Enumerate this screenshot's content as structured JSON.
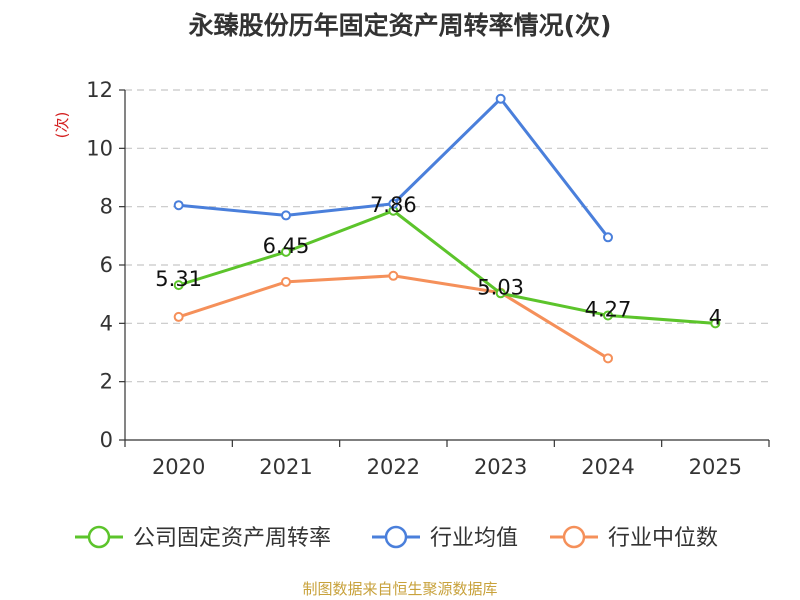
{
  "chart_data": {
    "type": "line",
    "title": "永臻股份历年固定资产周转率情况(次)",
    "ylabel": "(次)",
    "xlabel": "",
    "categories": [
      "2020",
      "2021",
      "2022",
      "2023",
      "2024",
      "2025"
    ],
    "ylim": [
      0,
      12
    ],
    "yticks": [
      0,
      2,
      4,
      6,
      8,
      10,
      12
    ],
    "grid": true,
    "legend_position": "bottom",
    "series": [
      {
        "name": "公司固定资产周转率",
        "color": "#5cc42b",
        "values": [
          5.31,
          6.45,
          7.86,
          5.03,
          4.27,
          4
        ],
        "labels": [
          "5.31",
          "6.45",
          "7.86",
          "5.03",
          "4.27",
          "4"
        ]
      },
      {
        "name": "行业均值",
        "color": "#4a7fdb",
        "values": [
          8.05,
          7.7,
          8.1,
          11.7,
          6.95,
          null
        ]
      },
      {
        "name": "行业中位数",
        "color": "#f5905a",
        "values": [
          4.22,
          5.42,
          5.63,
          5.05,
          2.8,
          null
        ]
      }
    ]
  },
  "source": {
    "text": "制图数据来自恒生聚源数据库",
    "color": "#c8a23c"
  },
  "ylabel_color": "#d42020"
}
